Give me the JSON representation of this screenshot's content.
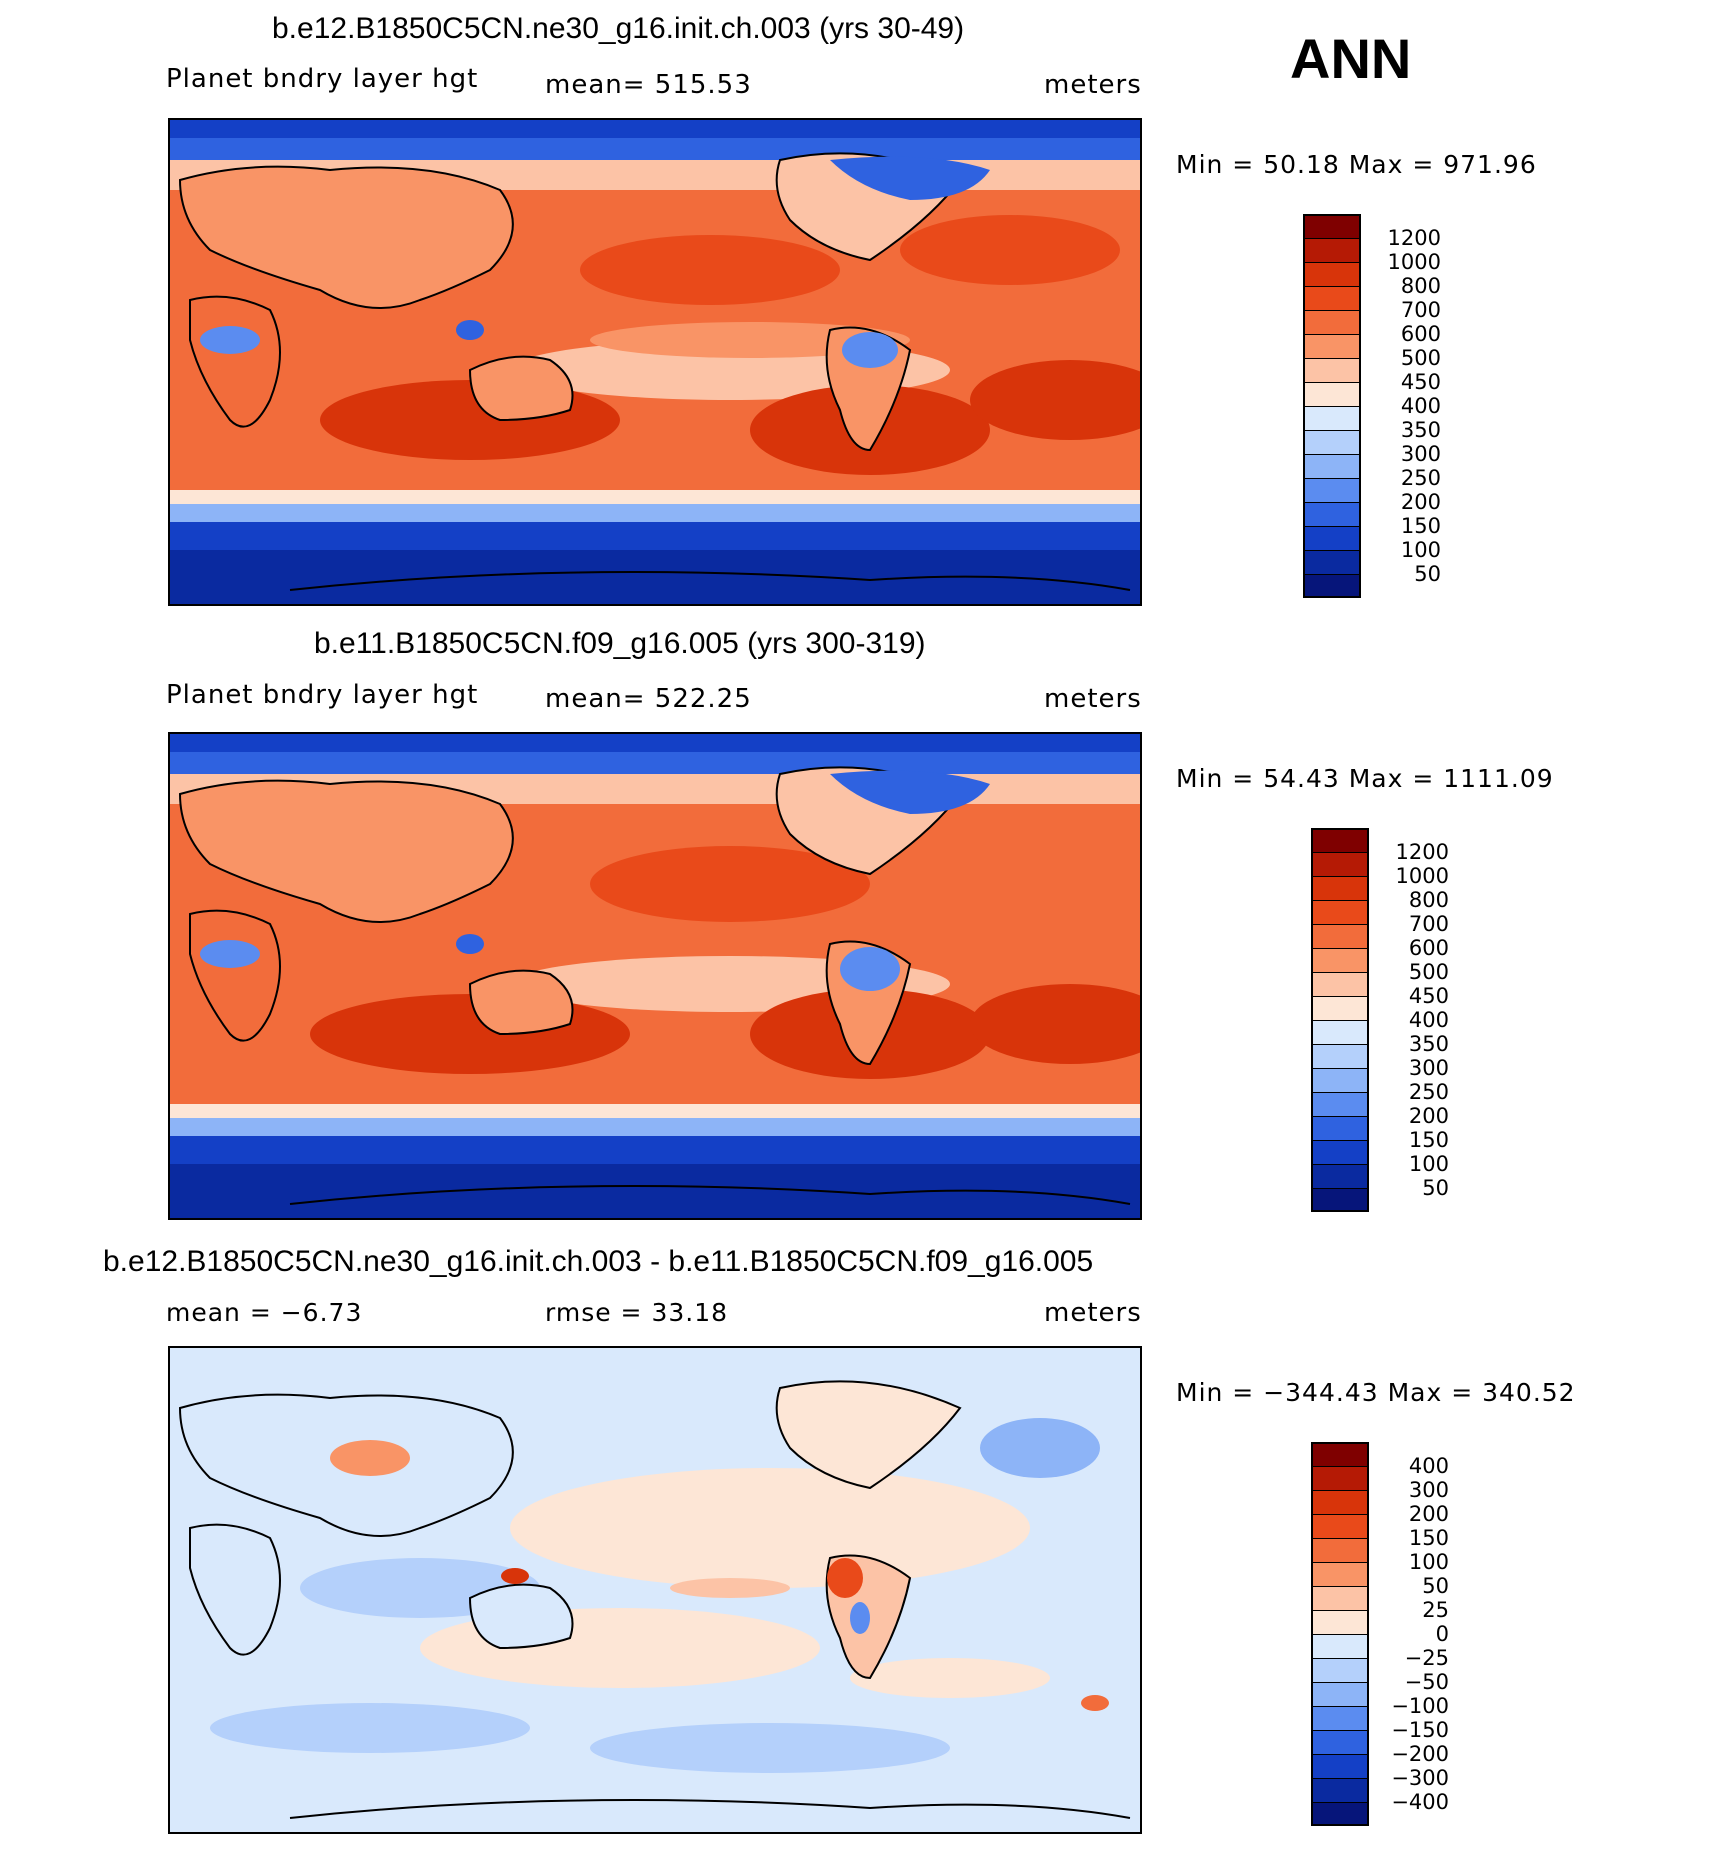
{
  "season": "ANN",
  "panels": [
    {
      "title": "b.e12.B1850C5CN.ne30_g16.init.ch.003 (yrs 30-49)",
      "left_label": "Planet bndry layer hgt",
      "center_label": "mean=  515.53",
      "right_label": "meters",
      "minmax": "Min =   50.18  Max  =  971.96",
      "type": "field",
      "colorbar": {
        "labels": [
          "1200",
          "1000",
          "800",
          "700",
          "600",
          "500",
          "450",
          "400",
          "350",
          "300",
          "250",
          "200",
          "150",
          "100",
          "50"
        ],
        "colors": [
          "#7f0000",
          "#b51a05",
          "#d8340a",
          "#e94a1a",
          "#f26c3b",
          "#f99466",
          "#fcc3a6",
          "#fde6d6",
          "#d9e9fc",
          "#b4d0fb",
          "#8db4f7",
          "#5b8cf0",
          "#2f62e0",
          "#1440c6",
          "#0a2aa0",
          "#06157a"
        ]
      }
    },
    {
      "title": "b.e11.B1850C5CN.f09_g16.005 (yrs 300-319)",
      "left_label": "Planet bndry layer hgt",
      "center_label": "mean=  522.25",
      "right_label": "meters",
      "minmax": "Min =   54.43  Max  =  1111.09",
      "type": "field",
      "colorbar": {
        "labels": [
          "1200",
          "1000",
          "800",
          "700",
          "600",
          "500",
          "450",
          "400",
          "350",
          "300",
          "250",
          "200",
          "150",
          "100",
          "50"
        ],
        "colors": [
          "#7f0000",
          "#b51a05",
          "#d8340a",
          "#e94a1a",
          "#f26c3b",
          "#f99466",
          "#fcc3a6",
          "#fde6d6",
          "#d9e9fc",
          "#b4d0fb",
          "#8db4f7",
          "#5b8cf0",
          "#2f62e0",
          "#1440c6",
          "#0a2aa0",
          "#06157a"
        ]
      }
    },
    {
      "title": "b.e12.B1850C5CN.ne30_g16.init.ch.003 - b.e11.B1850C5CN.f09_g16.005",
      "left_label": "mean =    −6.73",
      "center_label": "rmse =    33.18",
      "right_label": "meters",
      "minmax": "Min  =  −344.43  Max  =  340.52",
      "type": "diff",
      "colorbar": {
        "labels": [
          "400",
          "300",
          "200",
          "150",
          "100",
          "50",
          "25",
          "0",
          "−25",
          "−50",
          "−100",
          "−150",
          "−200",
          "−300",
          "−400"
        ],
        "colors": [
          "#7f0000",
          "#b51a05",
          "#d8340a",
          "#e94a1a",
          "#f26c3b",
          "#f99466",
          "#fcc3a6",
          "#fde6d6",
          "#d9e9fc",
          "#b4d0fb",
          "#8db4f7",
          "#5b8cf0",
          "#2f62e0",
          "#1440c6",
          "#0a2aa0",
          "#06157a"
        ]
      }
    }
  ]
}
